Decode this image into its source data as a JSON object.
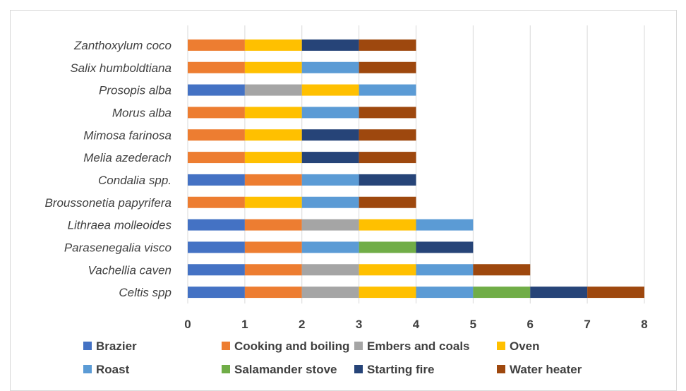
{
  "chart_data": {
    "type": "bar",
    "orientation": "horizontal",
    "stacked": true,
    "categories": [
      "Zanthoxylum coco",
      "Salix humboldtiana",
      "Prosopis alba",
      "Morus alba",
      "Mimosa farinosa",
      "Melia azederach",
      "Condalia spp.",
      "Broussonetia papyrifera",
      "Lithraea molleoides",
      "Parasenegalia visco",
      "Vachellia caven",
      "Celtis spp"
    ],
    "series": [
      {
        "name": "Brazier",
        "color": "#4472c4",
        "values": [
          0,
          0,
          1,
          0,
          0,
          0,
          1,
          0,
          1,
          1,
          1,
          1
        ]
      },
      {
        "name": "Cooking and boiling",
        "color": "#ed7d31",
        "values": [
          1,
          1,
          0,
          1,
          1,
          1,
          1,
          1,
          1,
          1,
          1,
          1
        ]
      },
      {
        "name": "Embers and coals",
        "color": "#a5a5a5",
        "values": [
          0,
          0,
          1,
          0,
          0,
          0,
          0,
          0,
          1,
          0,
          1,
          1
        ]
      },
      {
        "name": "Oven",
        "color": "#ffc000",
        "values": [
          1,
          1,
          1,
          1,
          1,
          1,
          0,
          1,
          1,
          0,
          1,
          1
        ]
      },
      {
        "name": "Roast",
        "color": "#5b9bd5",
        "values": [
          0,
          1,
          1,
          1,
          0,
          0,
          1,
          1,
          1,
          1,
          1,
          1
        ]
      },
      {
        "name": "Salamander stove",
        "color": "#70ad47",
        "values": [
          0,
          0,
          0,
          0,
          0,
          0,
          0,
          0,
          0,
          1,
          0,
          1
        ]
      },
      {
        "name": "Starting fire",
        "color": "#264478",
        "values": [
          1,
          0,
          0,
          0,
          1,
          1,
          1,
          0,
          0,
          1,
          0,
          1
        ]
      },
      {
        "name": "Water heater",
        "color": "#9e480e",
        "values": [
          1,
          1,
          0,
          1,
          1,
          1,
          0,
          1,
          0,
          0,
          1,
          1
        ]
      }
    ],
    "x_ticks": [
      "0",
      "1",
      "2",
      "3",
      "4",
      "5",
      "6",
      "7",
      "8"
    ],
    "xlim": [
      0,
      8
    ],
    "title": "",
    "xlabel": "",
    "ylabel": "",
    "grid": "vertical",
    "legend_position": "bottom"
  }
}
